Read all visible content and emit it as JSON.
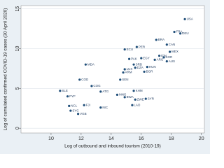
{
  "chart_data": {
    "type": "scatter",
    "xlabel": "Log of outbound and inbound tourism (2010-19)",
    "ylabel": "Log of cumulated confirmed COVID-19 cases (30 April 2020)",
    "xlim": [
      8,
      20.2
    ],
    "ylim": [
      -0.6,
      15.4
    ],
    "xticks": [
      10,
      12,
      14,
      16,
      18,
      20
    ],
    "yticks": [
      0,
      5,
      10,
      15
    ],
    "grid": true,
    "color": "#1f4e79",
    "labels": [
      "USA",
      "DEU",
      "FRA",
      "BRA",
      "CAN",
      "PER",
      "ECU",
      "MEX",
      "ARG",
      "IDN",
      "EGY",
      "PAK",
      "KOR",
      "AUS",
      "SRB",
      "LUX",
      "DZA",
      "HUN",
      "BGR",
      "ARM",
      "SEN",
      "MDA",
      "COD",
      "COG",
      "SLE",
      "PYF",
      "ATG",
      "KHM",
      "MNG",
      "NCL",
      "FJI",
      "SYC",
      "VGB",
      "NIC",
      "LAO",
      "SYR",
      "ZWE",
      "BWA"
    ],
    "x": [
      18.9,
      18.6,
      18.2,
      17.0,
      17.7,
      15.7,
      14.9,
      17.9,
      16.9,
      17.2,
      16.0,
      15.2,
      17.5,
      17.7,
      15.5,
      14.9,
      15.6,
      16.4,
      16.2,
      14.8,
      14.6,
      12.3,
      11.9,
      12.7,
      10.6,
      11.1,
      13.3,
      15.5,
      14.4,
      11.2,
      12.2,
      11.3,
      11.8,
      13.3,
      15.4,
      16.3,
      15.6,
      14.9
    ],
    "y": [
      13.7,
      11.9,
      12.1,
      11.1,
      10.5,
      10.2,
      9.9,
      9.6,
      8.6,
      9.1,
      8.8,
      8.7,
      8.9,
      8.4,
      8.0,
      7.4,
      7.6,
      7.7,
      7.1,
      7.0,
      6.1,
      8.0,
      6.1,
      5.3,
      4.7,
      4.0,
      4.6,
      4.7,
      4.2,
      2.8,
      2.9,
      2.2,
      1.8,
      2.6,
      2.9,
      3.7,
      3.6,
      3.9
    ]
  }
}
